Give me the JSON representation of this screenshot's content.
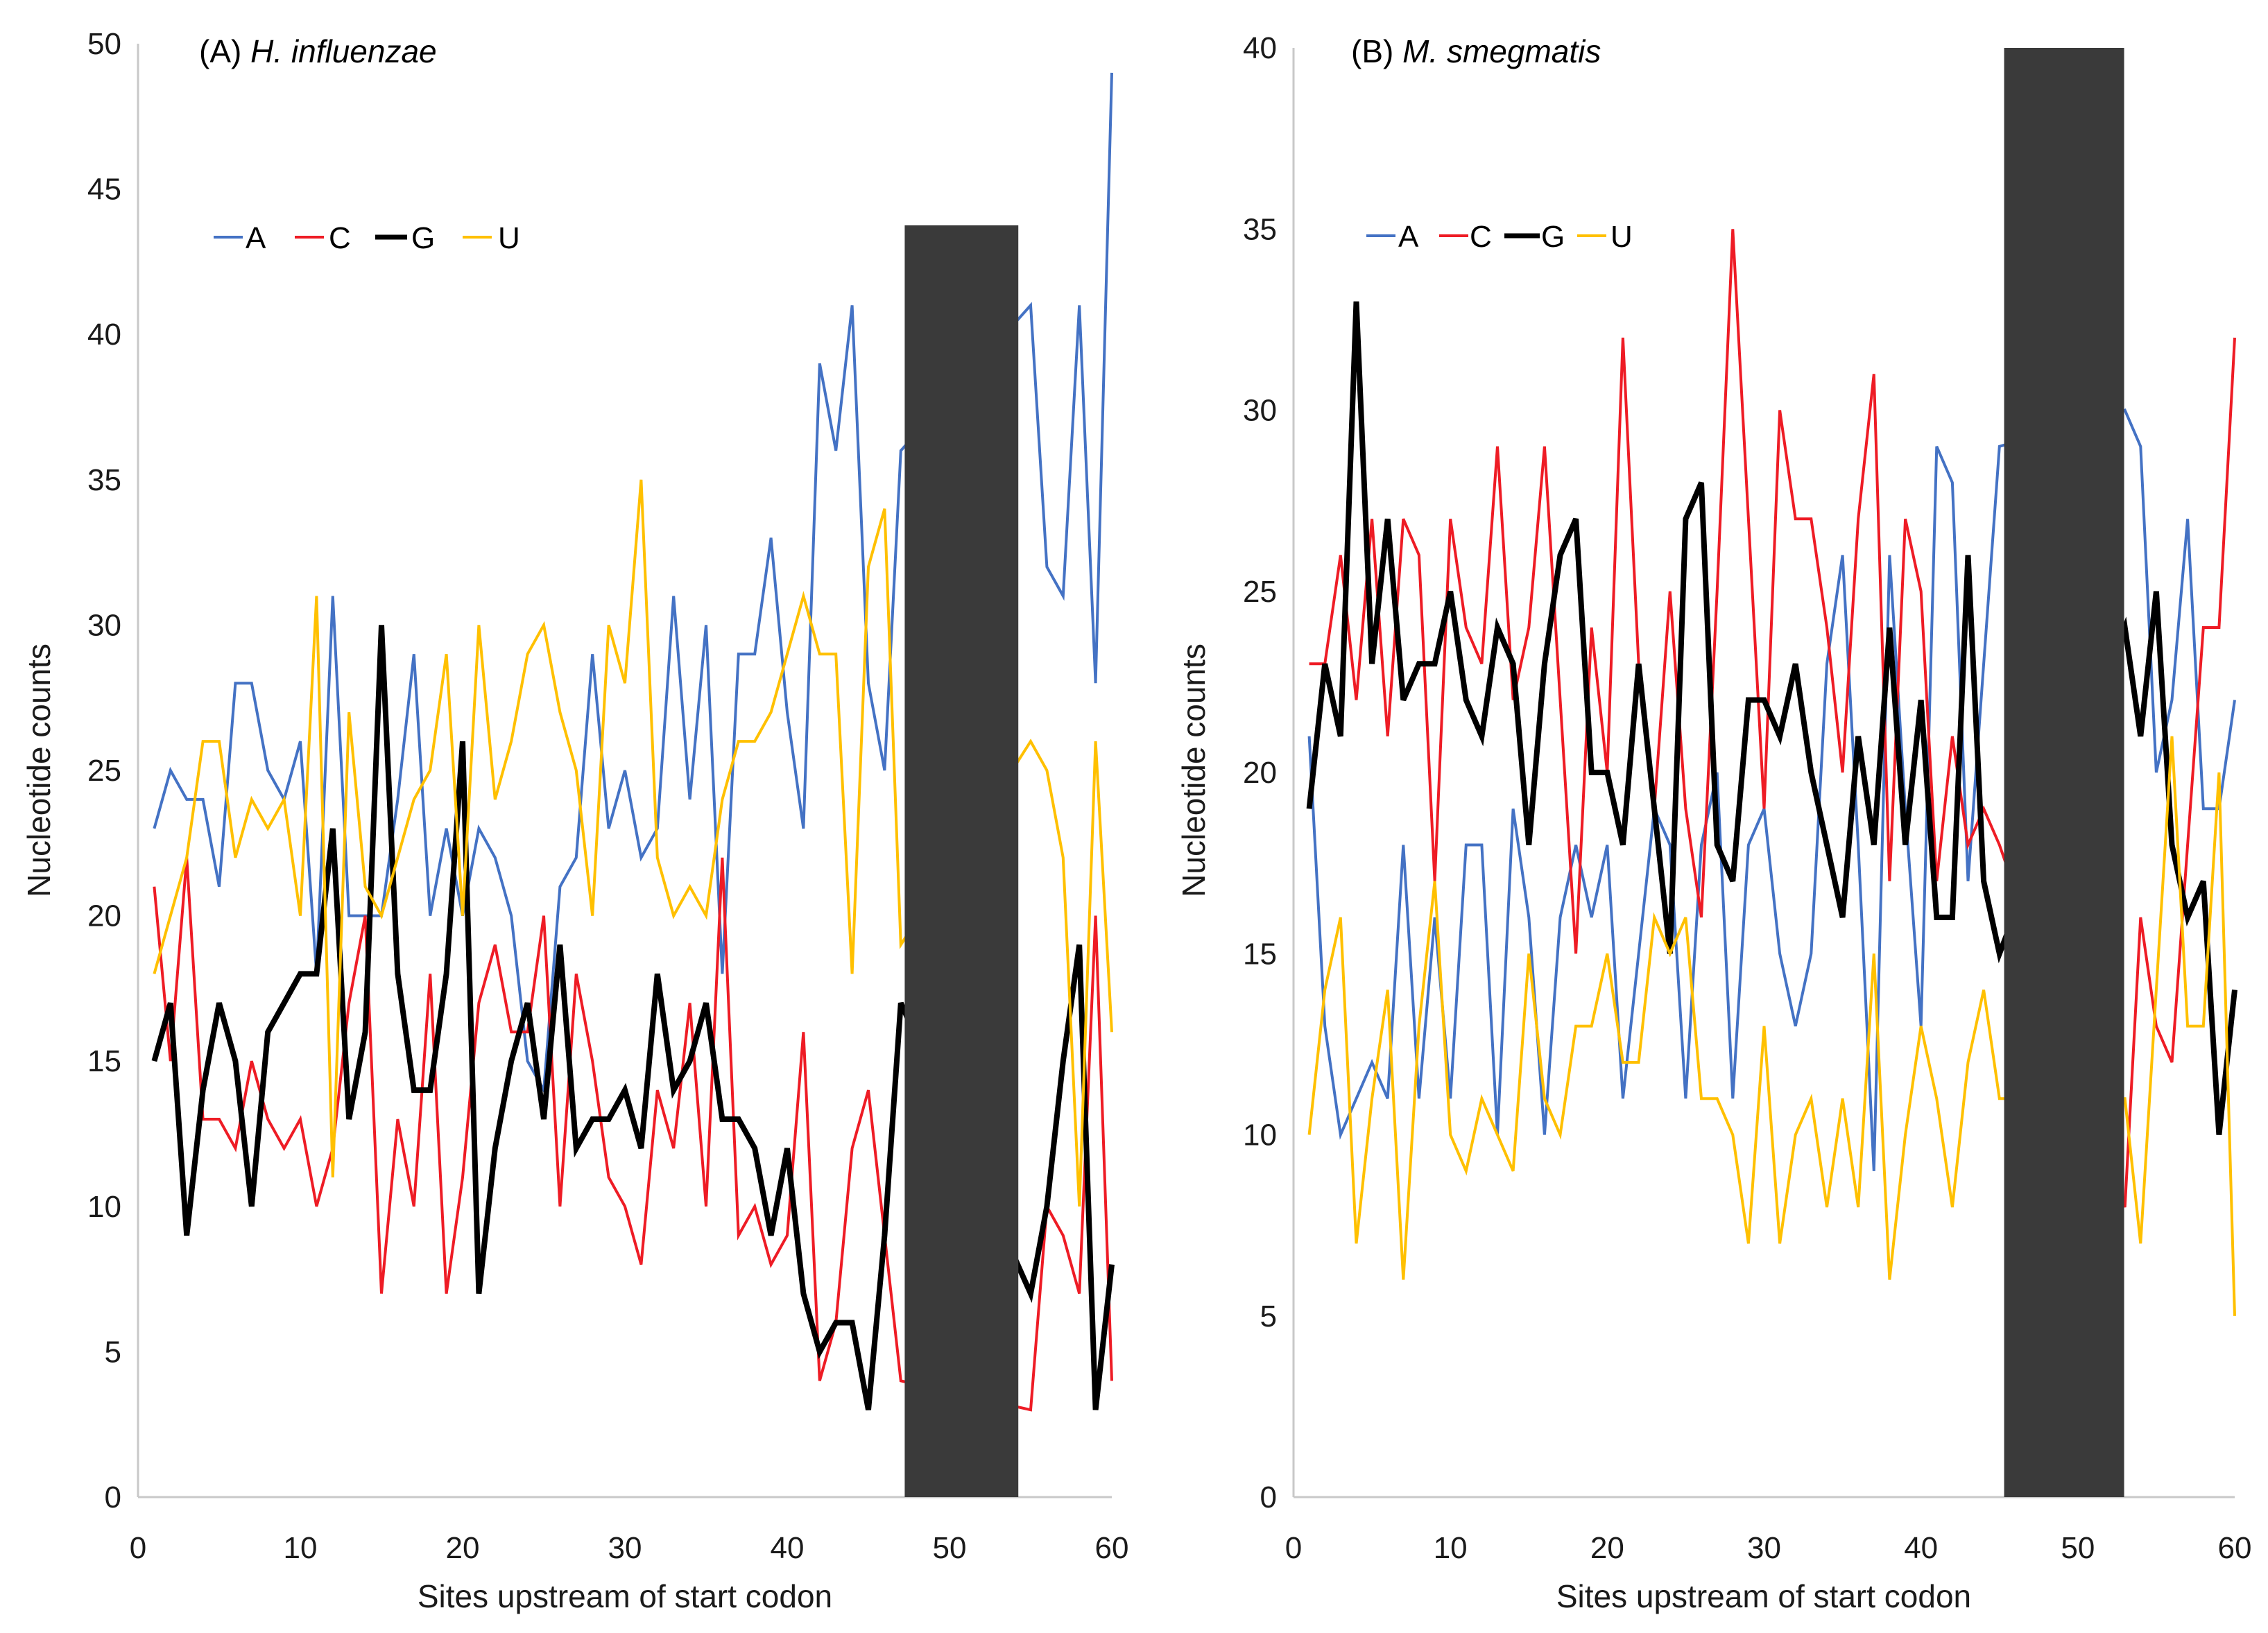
{
  "chart_data": [
    {
      "type": "line",
      "title_prefix": "(A) ",
      "title_species": "H. influenzae",
      "xlabel": "Sites upstream of start codon",
      "ylabel": "Nucleotide counts",
      "xlim": [
        0,
        60
      ],
      "ylim": [
        0,
        50
      ],
      "x_ticks": [
        0,
        10,
        20,
        30,
        40,
        50,
        60
      ],
      "y_ticks": [
        0,
        5,
        10,
        15,
        20,
        25,
        30,
        35,
        40,
        45,
        50
      ],
      "grid": false,
      "legend_position": "top-left",
      "masked_region": {
        "x_range": [
          47.24,
          54.24
        ],
        "y_range": [
          0,
          43.75
        ],
        "color": "#3a3a3a"
      },
      "x": [
        1,
        2,
        3,
        4,
        5,
        6,
        7,
        8,
        9,
        10,
        11,
        12,
        13,
        14,
        15,
        16,
        17,
        18,
        19,
        20,
        21,
        22,
        23,
        24,
        25,
        26,
        27,
        28,
        29,
        30,
        31,
        32,
        33,
        34,
        35,
        36,
        37,
        38,
        39,
        40,
        41,
        42,
        43,
        44,
        45,
        46,
        47,
        48,
        49,
        50,
        51,
        52,
        53,
        54,
        55,
        56,
        57,
        58,
        59,
        60
      ],
      "series": [
        {
          "name": "A",
          "color": "#4472C4",
          "values": [
            23,
            25,
            24,
            24,
            21,
            28,
            28,
            25,
            24,
            26,
            18,
            31,
            20,
            20,
            20,
            24,
            29,
            20,
            23,
            20,
            23,
            22,
            20,
            15,
            14,
            21,
            22,
            29,
            23,
            25,
            22,
            23,
            31,
            24,
            30,
            18,
            29,
            29,
            33,
            27,
            23,
            39,
            36,
            41,
            28,
            25,
            36,
            null,
            null,
            null,
            null,
            null,
            null,
            null,
            41,
            32,
            31,
            41,
            28,
            49
          ]
        },
        {
          "name": "C",
          "color": "#EE1C25",
          "values": [
            21,
            15,
            22,
            13,
            13,
            12,
            15,
            13,
            12,
            13,
            10,
            12,
            17,
            20,
            7,
            13,
            10,
            18,
            7,
            11,
            17,
            19,
            16,
            16,
            20,
            10,
            18,
            15,
            11,
            10,
            8,
            14,
            12,
            17,
            10,
            22,
            9,
            10,
            8,
            9,
            16,
            4,
            6,
            12,
            14,
            9,
            4,
            null,
            null,
            null,
            null,
            null,
            null,
            null,
            3,
            10,
            9,
            7,
            20,
            4
          ]
        },
        {
          "name": "G",
          "color": "#000000",
          "values": [
            15,
            17,
            9,
            14,
            17,
            15,
            10,
            16,
            17,
            18,
            18,
            23,
            13,
            16,
            30,
            18,
            14,
            14,
            18,
            26,
            7,
            12,
            15,
            17,
            13,
            19,
            12,
            13,
            13,
            14,
            12,
            18,
            14,
            15,
            17,
            13,
            13,
            12,
            9,
            12,
            7,
            5,
            6,
            6,
            3,
            9,
            17,
            null,
            null,
            null,
            null,
            null,
            null,
            null,
            7,
            10,
            15,
            19,
            3,
            8
          ]
        },
        {
          "name": "U",
          "color": "#FFC000",
          "values": [
            18,
            20,
            22,
            26,
            26,
            22,
            24,
            23,
            24,
            20,
            31,
            11,
            27,
            21,
            20,
            22,
            24,
            25,
            29,
            20,
            30,
            24,
            26,
            29,
            30,
            27,
            25,
            20,
            30,
            28,
            35,
            22,
            20,
            21,
            20,
            24,
            26,
            26,
            27,
            29,
            31,
            29,
            29,
            18,
            32,
            34,
            19,
            null,
            null,
            null,
            null,
            null,
            null,
            null,
            26,
            25,
            22,
            10,
            26,
            16
          ]
        }
      ]
    },
    {
      "type": "line",
      "title_prefix": "(B) ",
      "title_species": "M. smegmatis",
      "xlabel": "Sites upstream of start codon",
      "ylabel": "Nucleotide counts",
      "xlim": [
        0,
        60
      ],
      "ylim": [
        0,
        40
      ],
      "x_ticks": [
        0,
        10,
        20,
        30,
        40,
        50,
        60
      ],
      "y_ticks": [
        0,
        5,
        10,
        15,
        20,
        25,
        30,
        35,
        40
      ],
      "grid": false,
      "legend_position": "top-left",
      "masked_region": {
        "x_range": [
          45.3,
          52.95
        ],
        "y_range": [
          0,
          40
        ],
        "color": "#3a3a3a"
      },
      "x": [
        1,
        2,
        3,
        4,
        5,
        6,
        7,
        8,
        9,
        10,
        11,
        12,
        13,
        14,
        15,
        16,
        17,
        18,
        19,
        20,
        21,
        22,
        23,
        24,
        25,
        26,
        27,
        28,
        29,
        30,
        31,
        32,
        33,
        34,
        35,
        36,
        37,
        38,
        39,
        40,
        41,
        42,
        43,
        44,
        45,
        46,
        47,
        48,
        49,
        50,
        51,
        52,
        53,
        54,
        55,
        56,
        57,
        58,
        59,
        60
      ],
      "series": [
        {
          "name": "A",
          "color": "#4472C4",
          "values": [
            21,
            13,
            10,
            11,
            12,
            11,
            18,
            11,
            16,
            11,
            18,
            18,
            10,
            19,
            16,
            10,
            16,
            18,
            16,
            18,
            11,
            15,
            19,
            18,
            11,
            18,
            20,
            11,
            18,
            19,
            15,
            13,
            15,
            23,
            26,
            18,
            9,
            26,
            19,
            13,
            29,
            28,
            17,
            23,
            29,
            null,
            null,
            null,
            null,
            null,
            null,
            null,
            30,
            29,
            20,
            22,
            27,
            19,
            19,
            22
          ]
        },
        {
          "name": "C",
          "color": "#EE1C25",
          "values": [
            23,
            23,
            26,
            22,
            27,
            21,
            27,
            26,
            17,
            27,
            24,
            23,
            29,
            22,
            24,
            29,
            22,
            15,
            24,
            20,
            32,
            23,
            19,
            25,
            19,
            16,
            25,
            35,
            27,
            19,
            30,
            27,
            27,
            24,
            20,
            27,
            31,
            17,
            27,
            25,
            17,
            21,
            18,
            19,
            18,
            null,
            null,
            null,
            null,
            null,
            null,
            null,
            8,
            16,
            13,
            12,
            18,
            24,
            24,
            32
          ]
        },
        {
          "name": "G",
          "color": "#000000",
          "values": [
            19,
            23,
            21,
            33,
            23,
            27,
            22,
            23,
            23,
            25,
            22,
            21,
            24,
            23,
            18,
            23,
            26,
            27,
            20,
            20,
            18,
            23,
            19,
            15,
            27,
            28,
            18,
            17,
            22,
            22,
            21,
            23,
            20,
            18,
            16,
            21,
            18,
            24,
            18,
            22,
            16,
            16,
            26,
            17,
            15,
            null,
            null,
            null,
            null,
            null,
            null,
            null,
            24,
            21,
            25,
            18,
            16,
            17,
            10,
            14
          ]
        },
        {
          "name": "U",
          "color": "#FFC000",
          "values": [
            10,
            14,
            16,
            7,
            11,
            14,
            6,
            13,
            17,
            10,
            9,
            11,
            10,
            9,
            15,
            11,
            10,
            13,
            13,
            15,
            12,
            12,
            16,
            15,
            16,
            11,
            11,
            10,
            7,
            13,
            7,
            10,
            11,
            8,
            11,
            8,
            15,
            6,
            10,
            13,
            11,
            8,
            12,
            14,
            11,
            null,
            null,
            null,
            null,
            null,
            null,
            null,
            11,
            7,
            14,
            21,
            13,
            13,
            20,
            5
          ]
        }
      ]
    }
  ]
}
